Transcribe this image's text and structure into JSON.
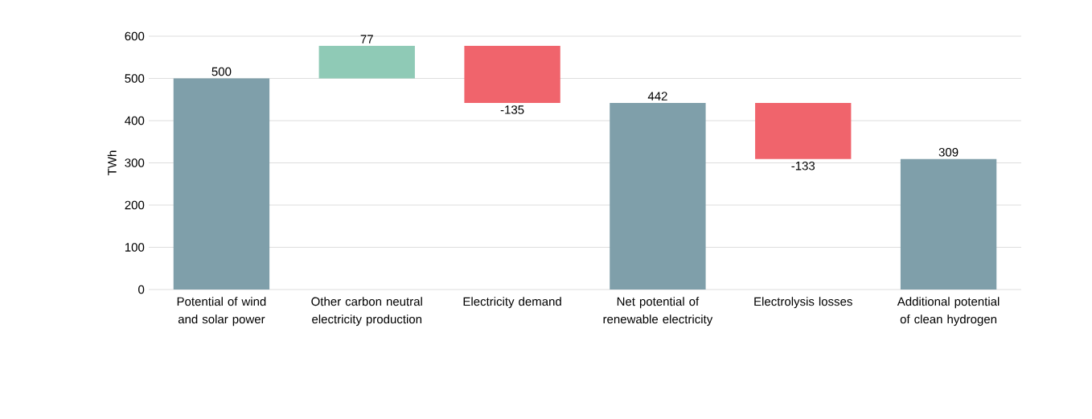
{
  "chart_data": {
    "type": "bar",
    "categories": [
      "Potential of wind and solar power",
      "Other carbon neutral electricity production",
      "Electricity demand",
      "Net potential of renewable electricity",
      "Electrolysis losses",
      "Additional potential of clean hydrogen"
    ],
    "values": [
      500,
      77,
      -135,
      442,
      -133,
      309
    ],
    "base": [
      0,
      500,
      577,
      0,
      442,
      0
    ],
    "colors": [
      "#7f9faa",
      "#8fcab6",
      "#f0646c",
      "#7f9faa",
      "#f0646c",
      "#7f9faa"
    ],
    "ylabel": "TWh",
    "ylim": [
      0,
      600
    ],
    "yticks": [
      0,
      100,
      200,
      300,
      400,
      500,
      600
    ],
    "grid": "y",
    "data_labels": true
  }
}
